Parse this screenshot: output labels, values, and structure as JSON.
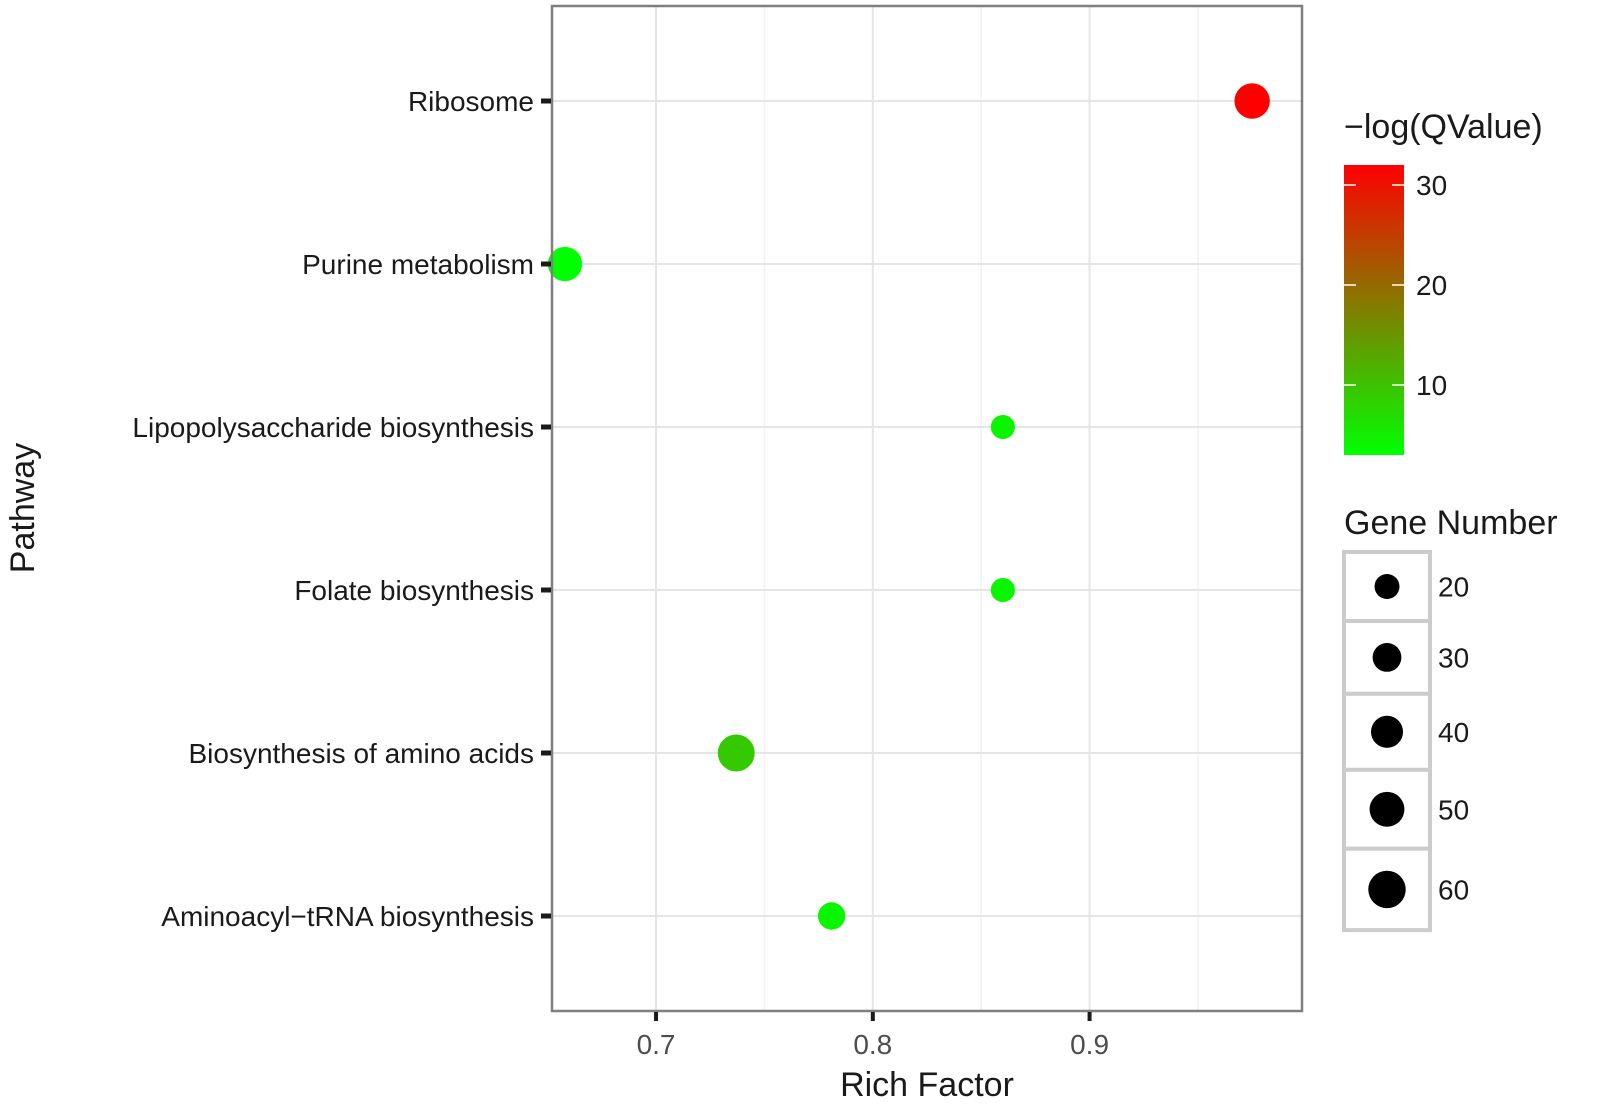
{
  "chart_data": {
    "type": "scatter",
    "title": "",
    "xlabel": "Rich Factor",
    "ylabel": "Pathway",
    "xlim": [
      0.652,
      0.998
    ],
    "xticks": [
      0.7,
      0.8,
      0.9
    ],
    "xtick_labels": [
      "0.7",
      "0.8",
      "0.9"
    ],
    "grid": true,
    "categories": [
      "Ribosome",
      "Purine metabolism",
      "Lipopolysaccharide biosynthesis",
      "Folate biosynthesis",
      "Biosynthesis of amino acids",
      "Aminoacyl−tRNA biosynthesis"
    ],
    "points": [
      {
        "pathway": "Ribosome",
        "rich_factor": 0.975,
        "qvalue": 32,
        "gene_number": 52
      },
      {
        "pathway": "Purine metabolism",
        "rich_factor": 0.658,
        "qvalue": 3,
        "gene_number": 48
      },
      {
        "pathway": "Lipopolysaccharide biosynthesis",
        "rich_factor": 0.86,
        "qvalue": 4,
        "gene_number": 18
      },
      {
        "pathway": "Folate biosynthesis",
        "rich_factor": 0.86,
        "qvalue": 4,
        "gene_number": 18
      },
      {
        "pathway": "Biosynthesis of amino acids",
        "rich_factor": 0.737,
        "qvalue": 9,
        "gene_number": 58
      },
      {
        "pathway": "Aminoacyl−tRNA biosynthesis",
        "rich_factor": 0.781,
        "qvalue": 4,
        "gene_number": 26
      }
    ],
    "color_legend": {
      "title": "−log(QValue)",
      "range": [
        3,
        32
      ],
      "ticks": [
        10,
        20,
        30
      ],
      "tick_labels": [
        "10",
        "20",
        "30"
      ],
      "low_color": "#00ff00",
      "high_color": "#ff0000"
    },
    "size_legend": {
      "title": "Gene Number",
      "values": [
        20,
        30,
        40,
        50,
        60
      ],
      "labels": [
        "20",
        "30",
        "40",
        "50",
        "60"
      ]
    }
  },
  "colors": {
    "panel_border": "#7f7f7f",
    "grid_major": "#e5e5e5",
    "grid_minor": "#f2f2f2",
    "legend_key_border": "#cccccc",
    "tick_mark": "#1a1a1a"
  }
}
